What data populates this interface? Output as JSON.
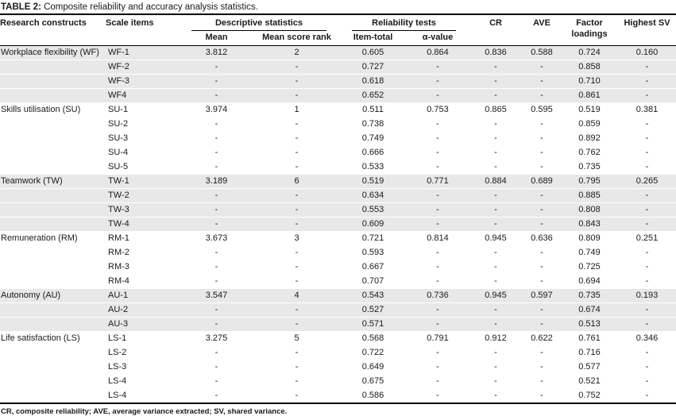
{
  "title": {
    "label": "TABLE 2:",
    "text": " Composite reliability and accuracy analysis statistics."
  },
  "headers": {
    "research_constructs": "Research constructs",
    "scale_items": "Scale items",
    "descriptive_statistics": "Descriptive statistics",
    "mean": "Mean",
    "mean_score_rank": "Mean score rank",
    "reliability_tests": "Reliability tests",
    "item_total": "Item-total",
    "alpha_value": "α-value",
    "cr": "CR",
    "ave": "AVE",
    "factor_loadings": "Factor loadings",
    "highest_sv": "Highest SV"
  },
  "table": {
    "row_order": [
      "scale_item",
      "mean",
      "mean_score_rank",
      "item_total",
      "alpha_value",
      "cr",
      "ave",
      "factor_loading",
      "highest_sv"
    ],
    "groups": [
      {
        "construct": "Workplace flexibility (WF)",
        "shaded": true,
        "rows": [
          [
            "WF-1",
            "3.812",
            "2",
            "0.605",
            "0.864",
            "0.836",
            "0.588",
            "0.724",
            "0.160"
          ],
          [
            "WF-2",
            "-",
            "-",
            "0.727",
            "-",
            "-",
            "-",
            "0.858",
            "-"
          ],
          [
            "WF-3",
            "-",
            "-",
            "0.618",
            "-",
            "-",
            "-",
            "0.710",
            "-"
          ],
          [
            "WF4",
            "-",
            "-",
            "0.652",
            "-",
            "-",
            "-",
            "0.861",
            "-"
          ]
        ]
      },
      {
        "construct": "Skills utilisation (SU)",
        "shaded": false,
        "rows": [
          [
            "SU-1",
            "3.974",
            "1",
            "0.511",
            "0.753",
            "0.865",
            "0.595",
            "0.519",
            "0.381"
          ],
          [
            "SU-2",
            "-",
            "-",
            "0.738",
            "-",
            "-",
            "-",
            "0.859",
            "-"
          ],
          [
            "SU-3",
            "-",
            "-",
            "0.749",
            "-",
            "-",
            "-",
            "0.892",
            "-"
          ],
          [
            "SU-4",
            "-",
            "-",
            "0.666",
            "-",
            "-",
            "-",
            "0.762",
            "-"
          ],
          [
            "SU-5",
            "-",
            "-",
            "0.533",
            "-",
            "-",
            "-",
            "0.735",
            "-"
          ]
        ]
      },
      {
        "construct": "Teamwork (TW)",
        "shaded": true,
        "rows": [
          [
            "TW-1",
            "3.189",
            "6",
            "0.519",
            "0.771",
            "0.884",
            "0.689",
            "0.795",
            "0.265"
          ],
          [
            "TW-2",
            "-",
            "-",
            "0.634",
            "-",
            "-",
            "-",
            "0.885",
            "-"
          ],
          [
            "TW-3",
            "-",
            "-",
            "0.553",
            "-",
            "-",
            "-",
            "0.808",
            "-"
          ],
          [
            "TW-4",
            "-",
            "-",
            "0.609",
            "-",
            "-",
            "-",
            "0.843",
            "-"
          ]
        ]
      },
      {
        "construct": "Remuneration (RM)",
        "shaded": false,
        "rows": [
          [
            "RM-1",
            "3.673",
            "3",
            "0.721",
            "0.814",
            "0.945",
            "0.636",
            "0.809",
            "0.251"
          ],
          [
            "RM-2",
            "-",
            "-",
            "0.593",
            "-",
            "-",
            "-",
            "0.749",
            "-"
          ],
          [
            "RM-3",
            "-",
            "-",
            "0.667",
            "-",
            "-",
            "-",
            "0.725",
            "-"
          ],
          [
            "RM-4",
            "-",
            "-",
            "0.707",
            "-",
            "-",
            "-",
            "0.694",
            "-"
          ]
        ]
      },
      {
        "construct": "Autonomy (AU)",
        "shaded": true,
        "rows": [
          [
            "AU-1",
            "3.547",
            "4",
            "0.543",
            "0.736",
            "0.945",
            "0.597",
            "0.735",
            "0.193"
          ],
          [
            "AU-2",
            "-",
            "-",
            "0.527",
            "-",
            "-",
            "-",
            "0.674",
            "-"
          ],
          [
            "AU-3",
            "-",
            "-",
            "0.571",
            "-",
            "-",
            "-",
            "0.513",
            "-"
          ]
        ]
      },
      {
        "construct": "Life satisfaction (LS)",
        "shaded": false,
        "rows": [
          [
            "LS-1",
            "3.275",
            "5",
            "0.568",
            "0.791",
            "0.912",
            "0.622",
            "0.761",
            "0.346"
          ],
          [
            "LS-2",
            "-",
            "-",
            "0.722",
            "-",
            "-",
            "-",
            "0.716",
            "-"
          ],
          [
            "LS-3",
            "-",
            "-",
            "0.649",
            "-",
            "-",
            "-",
            "0.577",
            "-"
          ],
          [
            "LS-4",
            "-",
            "-",
            "0.675",
            "-",
            "-",
            "-",
            "0.521",
            "-"
          ],
          [
            "LS-4",
            "-",
            "-",
            "0.586",
            "-",
            "-",
            "-",
            "0.752",
            "-"
          ]
        ]
      }
    ]
  },
  "footnote": "CR, composite reliability; AVE, average variance extracted; SV, shared variance.",
  "colors": {
    "row_shade": "#e8e8e8",
    "rule": "#000000",
    "text": "#1a1a1a"
  }
}
